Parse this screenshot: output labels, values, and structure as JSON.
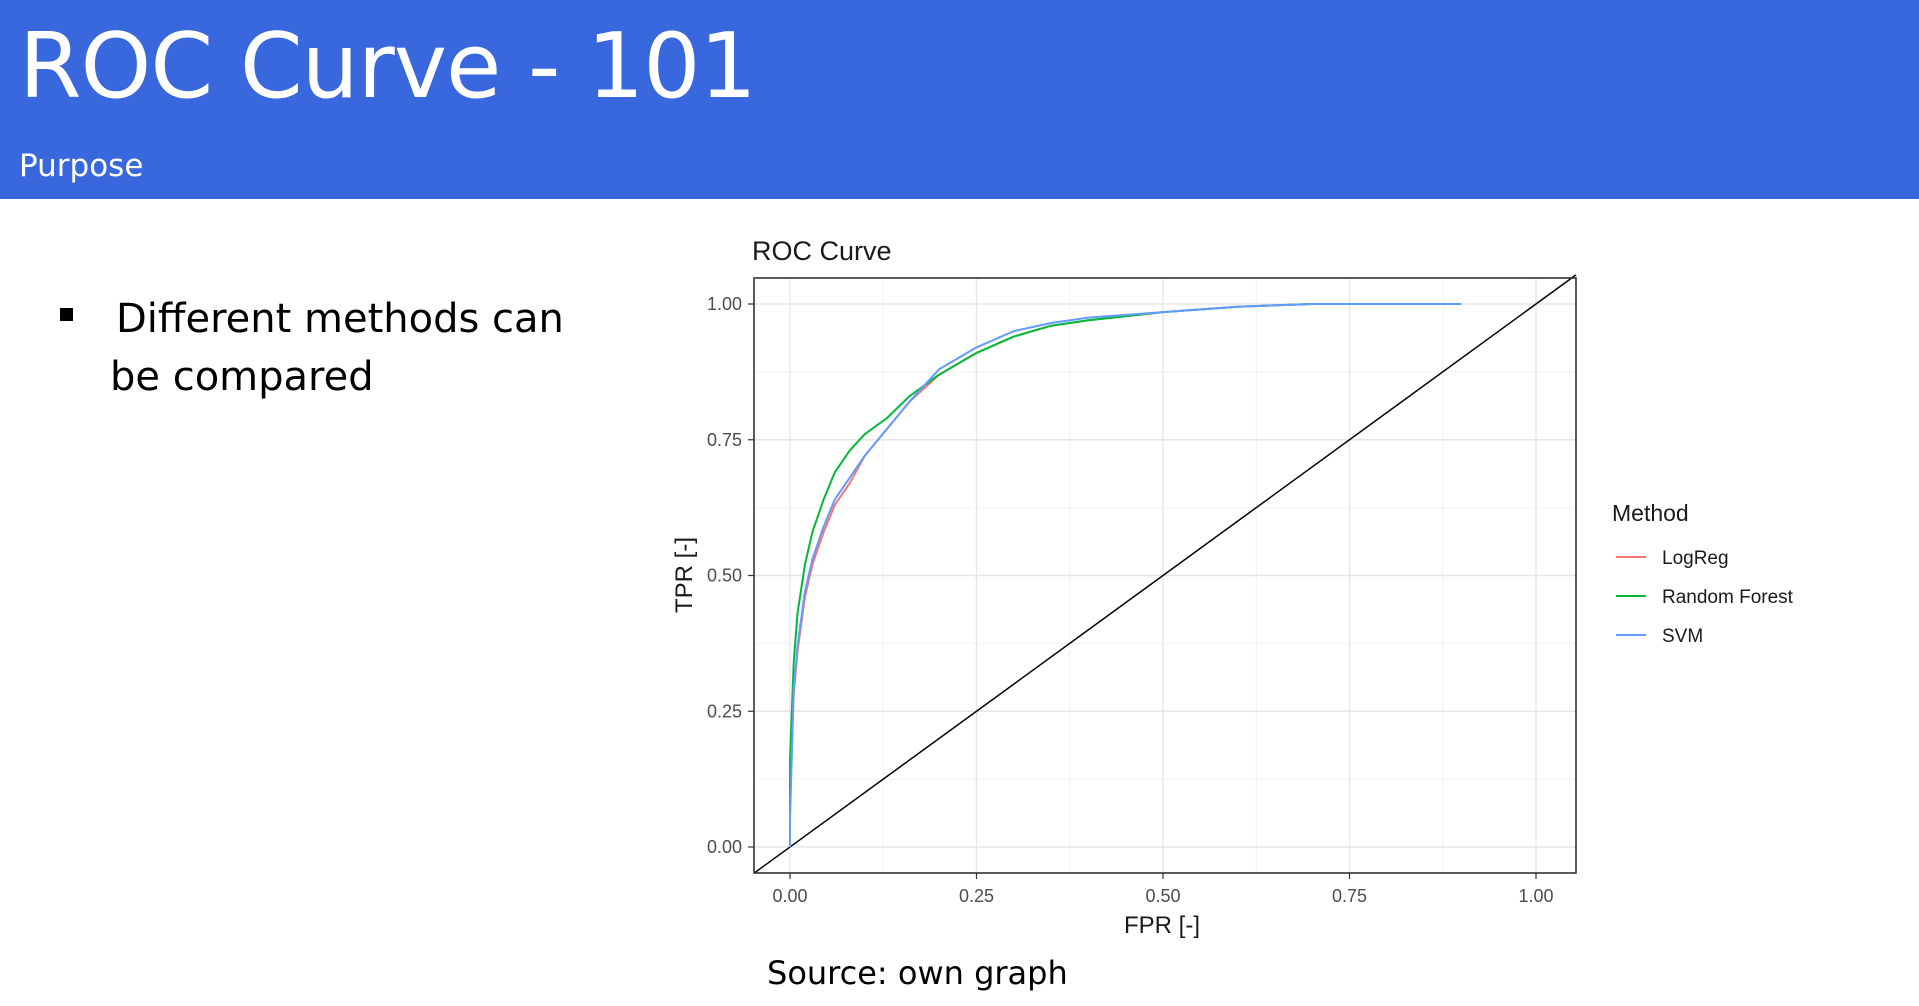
{
  "slide": {
    "title": "ROC Curve - 101",
    "subtitle": "Purpose",
    "bullet": "Different methods can be compared",
    "source": "Source: own graph",
    "header_color": "#3967de"
  },
  "chart_data": {
    "type": "line",
    "title": "ROC Curve",
    "xlabel": "FPR [-]",
    "ylabel": "TPR [-]",
    "xlim": [
      0,
      1
    ],
    "ylim": [
      0,
      1
    ],
    "xticks": [
      "0.00",
      "0.25",
      "0.50",
      "0.75",
      "1.00"
    ],
    "yticks": [
      "0.00",
      "0.25",
      "0.50",
      "0.75",
      "1.00"
    ],
    "grid": true,
    "legend_title": "Method",
    "legend_position": "right",
    "reference_line": {
      "x": [
        0,
        1
      ],
      "y": [
        0,
        1
      ],
      "color": "#000000"
    },
    "series": [
      {
        "name": "LogReg",
        "color": "#f8766d",
        "x": [
          0.0,
          0.0,
          0.005,
          0.01,
          0.02,
          0.03,
          0.045,
          0.06,
          0.08,
          0.1,
          0.13,
          0.16,
          0.2,
          0.25,
          0.3,
          0.35,
          0.4,
          0.5,
          0.6,
          0.7,
          0.9
        ],
        "y": [
          0.0,
          0.1,
          0.28,
          0.36,
          0.46,
          0.52,
          0.58,
          0.63,
          0.67,
          0.72,
          0.77,
          0.82,
          0.87,
          0.91,
          0.94,
          0.96,
          0.97,
          0.985,
          0.995,
          1.0,
          1.0
        ]
      },
      {
        "name": "Random Forest",
        "color": "#00ba38",
        "x": [
          0.0,
          0.0,
          0.005,
          0.01,
          0.02,
          0.03,
          0.045,
          0.06,
          0.08,
          0.1,
          0.13,
          0.16,
          0.2,
          0.25,
          0.3,
          0.35,
          0.4,
          0.5,
          0.6,
          0.7,
          0.9
        ],
        "y": [
          0.0,
          0.16,
          0.34,
          0.43,
          0.52,
          0.58,
          0.64,
          0.69,
          0.73,
          0.76,
          0.79,
          0.83,
          0.87,
          0.91,
          0.94,
          0.96,
          0.97,
          0.985,
          0.995,
          1.0,
          1.0
        ]
      },
      {
        "name": "SVM",
        "color": "#619cff",
        "x": [
          0.0,
          0.0,
          0.005,
          0.01,
          0.02,
          0.03,
          0.045,
          0.06,
          0.08,
          0.1,
          0.13,
          0.16,
          0.2,
          0.25,
          0.3,
          0.35,
          0.4,
          0.5,
          0.6,
          0.7,
          0.9
        ],
        "y": [
          0.0,
          0.05,
          0.29,
          0.37,
          0.47,
          0.53,
          0.59,
          0.64,
          0.68,
          0.72,
          0.77,
          0.82,
          0.88,
          0.92,
          0.95,
          0.965,
          0.975,
          0.985,
          0.995,
          1.0,
          1.0
        ]
      }
    ]
  }
}
